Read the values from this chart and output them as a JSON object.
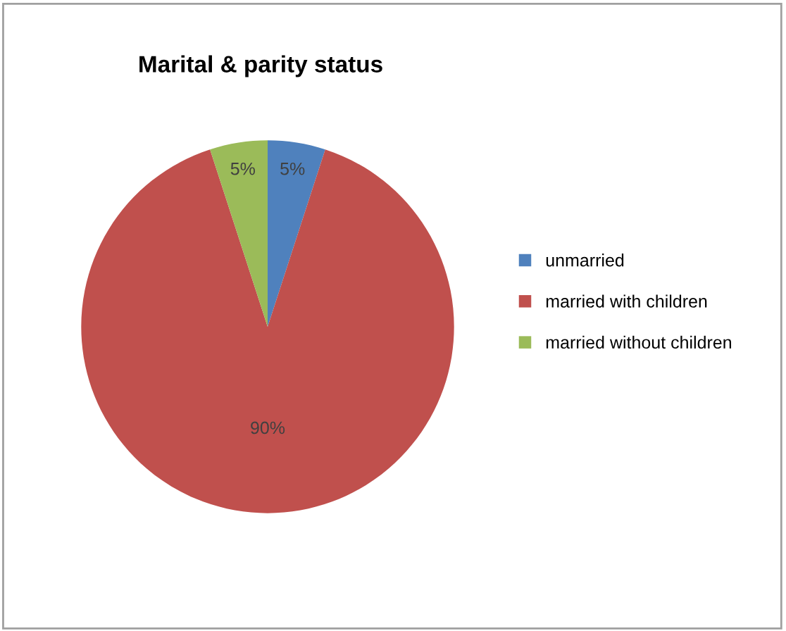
{
  "chart_data": {
    "type": "pie",
    "title": "Marital & parity status",
    "categories": [
      "unmarried",
      "married with children",
      "married without children"
    ],
    "values": [
      5,
      90,
      5
    ],
    "colors": [
      "#4f81bd",
      "#c0504d",
      "#9bbb59"
    ],
    "value_labels": [
      "5%",
      "90%",
      "5%"
    ],
    "legend": "right"
  }
}
